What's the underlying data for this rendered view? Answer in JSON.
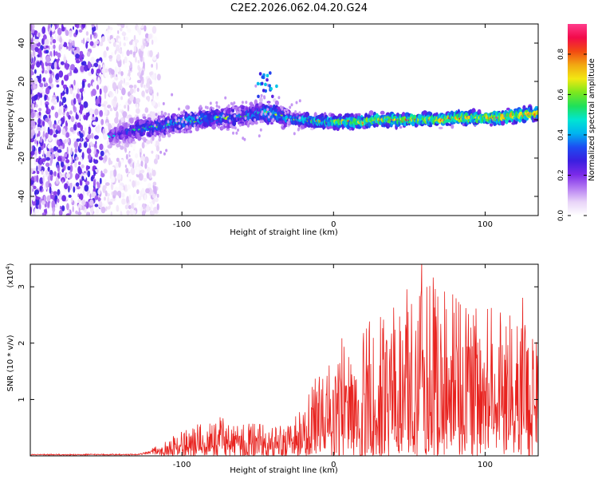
{
  "title": "C2E2.2026.062.04.20.G24",
  "chart_data": [
    {
      "type": "heatmap",
      "name": "spectrogram",
      "xlabel": "Height of straight line (km)",
      "ylabel": "Frequency (Hz)",
      "xlim": [
        -200,
        135
      ],
      "ylim": [
        -50,
        50
      ],
      "xticks": [
        -100,
        0,
        100
      ],
      "yticks": [
        -40,
        -20,
        0,
        20,
        40
      ],
      "colorbar": {
        "label": "Normalized spectral amplitude",
        "range": [
          0,
          0.95
        ],
        "ticks": [
          0.0,
          0.2,
          0.4,
          0.6,
          0.8
        ],
        "tick_labels": [
          "0.0",
          "0.2",
          "0.4",
          "0.6",
          "0.8"
        ],
        "colors": [
          "#ffffff",
          "#e8d4f8",
          "#b57cf2",
          "#7b2ae8",
          "#3a1fe0",
          "#1d4cf2",
          "#00b4f0",
          "#00e5d2",
          "#1fe05a",
          "#7ce81e",
          "#f2e812",
          "#f2a812",
          "#f24a12",
          "#f20a4a",
          "#ff3c8c"
        ]
      },
      "ridge": {
        "x": [
          -148,
          -140,
          -130,
          -120,
          -110,
          -100,
          -90,
          -80,
          -70,
          -60,
          -50,
          -45,
          -40,
          -35,
          -30,
          -25,
          -20,
          -10,
          0,
          10,
          20,
          30,
          40,
          50,
          60,
          70,
          80,
          90,
          100,
          110,
          120,
          130
        ],
        "freq": [
          -9,
          -7,
          -5,
          -4,
          -3,
          -1,
          0,
          1,
          1,
          2,
          3,
          4,
          3,
          2,
          1,
          0,
          0,
          -1,
          -1,
          -1,
          -1,
          0,
          0,
          0,
          0,
          0,
          1,
          1,
          1,
          1,
          2,
          3
        ],
        "amplitude": [
          0.25,
          0.3,
          0.35,
          0.4,
          0.42,
          0.45,
          0.45,
          0.42,
          0.45,
          0.4,
          0.42,
          0.5,
          0.5,
          0.45,
          0.45,
          0.5,
          0.55,
          0.6,
          0.62,
          0.68,
          0.7,
          0.72,
          0.72,
          0.72,
          0.74,
          0.75,
          0.76,
          0.75,
          0.76,
          0.78,
          0.78,
          0.8
        ]
      }
    },
    {
      "type": "line",
      "name": "snr",
      "xlabel": "Height of straight line (km)",
      "ylabel": "SNR (10 * v/v)",
      "scale_label": "(x10",
      "scale_exponent": "4",
      "scale_close": ")",
      "color": "#e8231f",
      "xlim": [
        -200,
        135
      ],
      "ylim": [
        0,
        3.4
      ],
      "xticks": [
        -100,
        0,
        100
      ],
      "yticks": [
        1,
        2,
        3
      ],
      "envelope": {
        "x": [
          -200,
          -130,
          -120,
          -110,
          -100,
          -90,
          -80,
          -70,
          -60,
          -50,
          -40,
          -30,
          -20,
          -10,
          0,
          10,
          20,
          30,
          40,
          50,
          60,
          65,
          70,
          80,
          90,
          100,
          110,
          120,
          130,
          135
        ],
        "max": [
          0.05,
          0.06,
          0.15,
          0.3,
          0.45,
          0.6,
          0.7,
          0.6,
          0.65,
          0.6,
          0.5,
          0.6,
          0.9,
          1.6,
          1.8,
          2.0,
          2.2,
          2.6,
          2.7,
          2.8,
          3.0,
          3.3,
          3.2,
          2.9,
          2.7,
          2.7,
          2.6,
          2.5,
          2.4,
          2.3
        ]
      }
    }
  ]
}
